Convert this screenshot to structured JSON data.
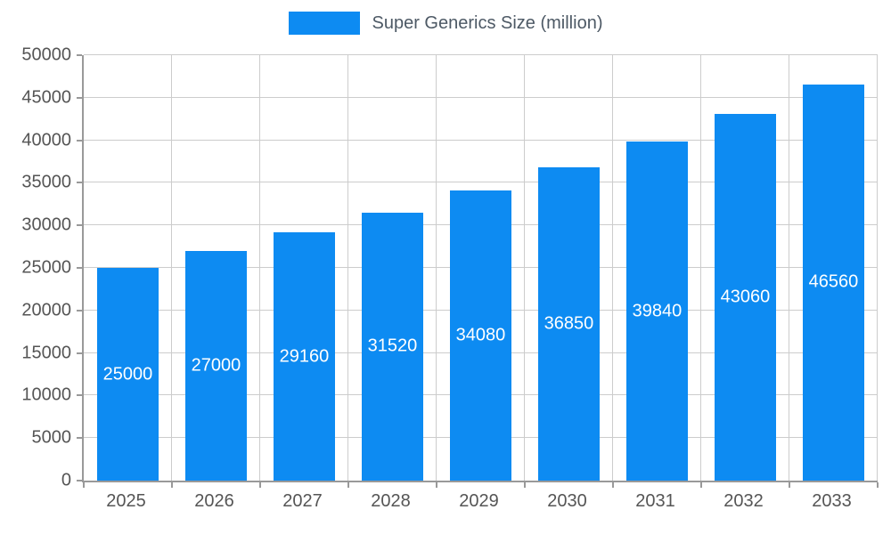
{
  "colors": {
    "bar": "#0d8bf2",
    "grid": "#cccccc",
    "axis": "#999999",
    "tick_text": "#555555",
    "legend_text": "#4d5965",
    "background": "#ffffff",
    "bar_label_text": "#ffffff"
  },
  "chart_data": {
    "type": "bar",
    "title": "",
    "legend": "Super Generics Size (million)",
    "legend_position": "top",
    "categories": [
      "2025",
      "2026",
      "2027",
      "2028",
      "2029",
      "2030",
      "2031",
      "2032",
      "2033"
    ],
    "values": [
      25000,
      27000,
      29160,
      31520,
      34080,
      36850,
      39840,
      43060,
      46560
    ],
    "xlabel": "",
    "ylabel": "",
    "ylim": [
      0,
      50000
    ],
    "yticks": [
      0,
      5000,
      10000,
      15000,
      20000,
      25000,
      30000,
      35000,
      40000,
      45000,
      50000
    ],
    "grid": true,
    "data_labels": "inside-center-white"
  }
}
